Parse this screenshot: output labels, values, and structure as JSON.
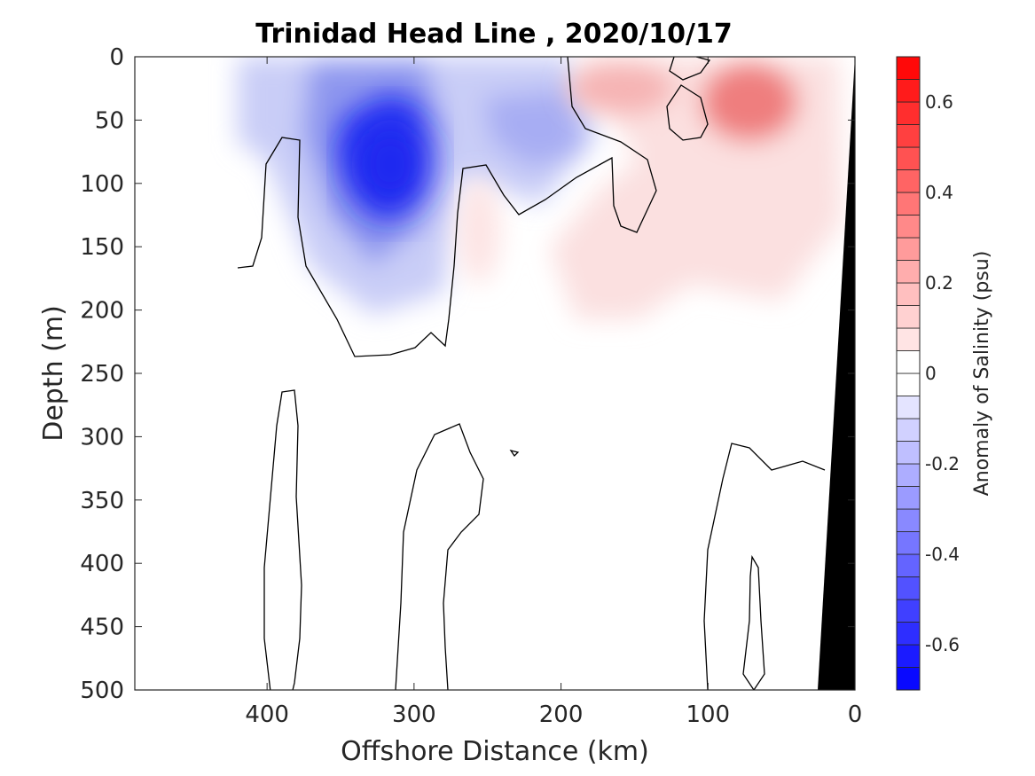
{
  "chart_data": {
    "type": "contour",
    "title": "Trinidad Head Line , 2020/10/17",
    "xlabel": "Offshore Distance (km)",
    "ylabel": "Depth (m)",
    "colorbar_label": "Anomaly of Salinity (psu)",
    "xlim": [
      490,
      0
    ],
    "ylim": [
      0,
      500
    ],
    "x_reversed": true,
    "y_reversed": true,
    "x_ticks": [
      400,
      300,
      200,
      100,
      0
    ],
    "y_ticks": [
      0,
      50,
      100,
      150,
      200,
      250,
      300,
      350,
      400,
      450,
      500
    ],
    "colorbar": {
      "range": [
        -0.7,
        0.7
      ],
      "levels": 28,
      "ticks": [
        -0.6,
        -0.4,
        -0.2,
        0,
        0.2,
        0.4,
        0.6
      ],
      "tick_labels": [
        "-0.6",
        "-0.4",
        "-0.2",
        "0",
        "0.2",
        "0.4",
        "0.6"
      ],
      "colors": {
        "negative": "#0000ff",
        "zero": "#ffffff",
        "positive": "#ff0000"
      }
    },
    "features": [
      {
        "kind": "fresh_anomaly",
        "x": 310,
        "depth": 95,
        "min_value": -0.55
      },
      {
        "kind": "fresh_anomaly",
        "x": 405,
        "depth": 20,
        "min_value": -0.15
      },
      {
        "kind": "fresh_anomaly",
        "x": 215,
        "depth": 60,
        "min_value": -0.3
      },
      {
        "kind": "salty_anomaly",
        "x": 70,
        "depth": 35,
        "max_value": 0.35
      },
      {
        "kind": "salty_anomaly",
        "x": 160,
        "depth": 25,
        "max_value": 0.2
      },
      {
        "kind": "salty_anomaly",
        "x": 120,
        "depth": 250,
        "max_value": 0.05
      }
    ],
    "grid": false,
    "bathymetry_color": "#000000"
  }
}
